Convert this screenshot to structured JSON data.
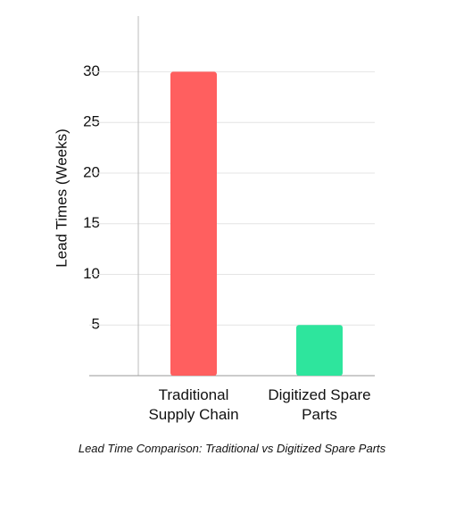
{
  "chart_data": {
    "type": "bar",
    "y_label": "Lead Times (Weeks)",
    "caption": "Lead Time Comparison: Traditional vs Digitized Spare Parts",
    "categories": [
      "Traditional Supply Chain",
      "Digitized Spare Parts"
    ],
    "values": [
      30,
      5
    ],
    "colors": [
      "#ff5f5f",
      "#2ee59d"
    ],
    "ylim": [
      0,
      35.5
    ],
    "yticks": [
      5,
      10,
      15,
      20,
      25,
      30
    ],
    "grid": true
  }
}
